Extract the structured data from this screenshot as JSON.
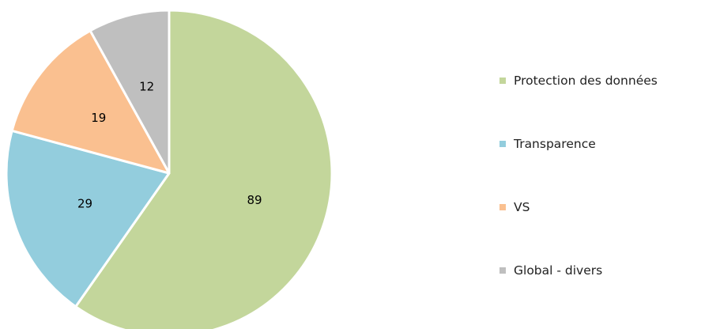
{
  "chart_data": {
    "type": "pie",
    "categories": [
      "Protection des données",
      "Transparence",
      "VS",
      "Global - divers"
    ],
    "values": [
      89,
      29,
      19,
      12
    ],
    "colors": [
      "#c3d69b",
      "#93cddd",
      "#fac090",
      "#bfbfbf"
    ],
    "start_angle_deg": 0,
    "direction": "clockwise",
    "data_labels": true,
    "legend_position": "right",
    "title": ""
  }
}
